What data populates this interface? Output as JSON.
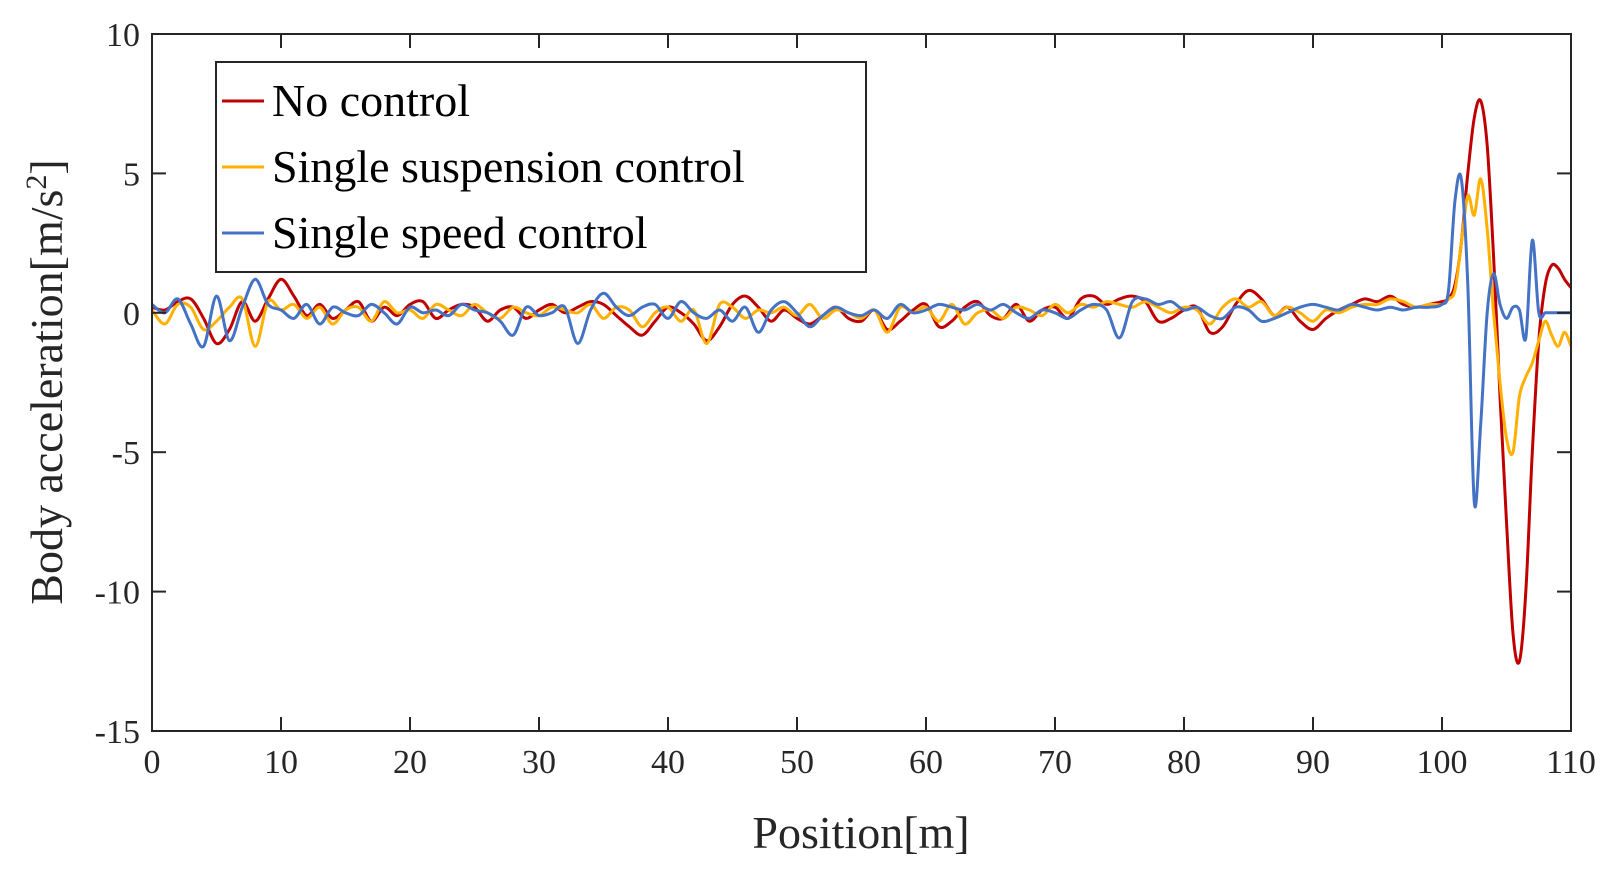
{
  "chart_data": {
    "type": "line",
    "title": "",
    "xlabel": "Position[m]",
    "ylabel": "Body acceleration[m/s",
    "ylabel_sup": "2",
    "ylabel_end": "]",
    "xlim": [
      0,
      110
    ],
    "ylim": [
      -15,
      10
    ],
    "xticks": [
      0,
      10,
      20,
      30,
      40,
      50,
      60,
      70,
      80,
      90,
      100,
      110
    ],
    "yticks": [
      -15,
      -10,
      -5,
      0,
      5,
      10
    ],
    "grid": false,
    "legend_position": "top-left",
    "series": [
      {
        "name": "No control",
        "color": "#c00000",
        "x": [
          0,
          1,
          2,
          3,
          4,
          5,
          6,
          7,
          8,
          9,
          10,
          11,
          12,
          13,
          14,
          15,
          16,
          17,
          18,
          19,
          20,
          21,
          22,
          23,
          24,
          25,
          26,
          27,
          28,
          29,
          30,
          31,
          32,
          33,
          34,
          35,
          36,
          37,
          38,
          39,
          40,
          41,
          42,
          43,
          44,
          45,
          46,
          47,
          48,
          49,
          50,
          51,
          52,
          53,
          54,
          55,
          56,
          57,
          58,
          59,
          60,
          61,
          62,
          63,
          64,
          65,
          66,
          67,
          68,
          69,
          70,
          71,
          72,
          73,
          74,
          75,
          76,
          77,
          78,
          79,
          80,
          81,
          82,
          83,
          84,
          85,
          86,
          87,
          88,
          89,
          90,
          91,
          92,
          93,
          94,
          95,
          96,
          97,
          98,
          99,
          100,
          100.5,
          101,
          101.5,
          102,
          102.5,
          103,
          103.5,
          104,
          104.5,
          105,
          105.5,
          106,
          106.5,
          107,
          107.5,
          108,
          108.5,
          109,
          109.5,
          110
        ],
        "values": [
          0.2,
          0.1,
          0.4,
          0.5,
          -0.2,
          -1.1,
          -0.6,
          0.4,
          -0.3,
          0.5,
          1.2,
          0.6,
          -0.1,
          0.3,
          -0.2,
          0.1,
          0.4,
          -0.3,
          0.2,
          -0.1,
          0.3,
          0.4,
          -0.2,
          0.1,
          0.3,
          0.2,
          -0.3,
          0.1,
          0.2,
          -0.2,
          0.1,
          0.3,
          0.0,
          0.2,
          0.4,
          0.3,
          -0.1,
          -0.5,
          -0.8,
          -0.3,
          0.2,
          0.0,
          -0.4,
          -1.0,
          -0.5,
          0.3,
          0.6,
          0.2,
          -0.3,
          0.1,
          -0.2,
          -0.4,
          -0.1,
          0.2,
          -0.2,
          -0.3,
          0.1,
          -0.6,
          -0.3,
          0.1,
          0.3,
          -0.5,
          -0.3,
          0.2,
          0.4,
          -0.1,
          -0.2,
          0.3,
          -0.3,
          0.1,
          0.2,
          -0.2,
          0.5,
          0.6,
          0.3,
          0.5,
          0.6,
          0.4,
          -0.3,
          -0.2,
          0.1,
          0.2,
          -0.7,
          -0.5,
          0.3,
          0.8,
          0.5,
          -0.1,
          0.2,
          -0.3,
          -0.6,
          -0.2,
          0.1,
          0.3,
          0.5,
          0.4,
          0.6,
          0.3,
          0.2,
          0.3,
          0.4,
          0.5,
          1.0,
          2.5,
          5.0,
          7.0,
          7.6,
          6.0,
          2.0,
          -3.0,
          -7.5,
          -11.5,
          -12.5,
          -10.0,
          -5.0,
          -1.0,
          1.0,
          1.7,
          1.6,
          1.2,
          0.9
        ]
      },
      {
        "name": "Single suspension control",
        "color": "#ffb000",
        "x": [
          0,
          1,
          2,
          3,
          4,
          5,
          6,
          7,
          8,
          9,
          10,
          11,
          12,
          13,
          14,
          15,
          16,
          17,
          18,
          19,
          20,
          21,
          22,
          23,
          24,
          25,
          26,
          27,
          28,
          29,
          30,
          31,
          32,
          33,
          34,
          35,
          36,
          37,
          38,
          39,
          40,
          41,
          42,
          43,
          44,
          45,
          46,
          47,
          48,
          49,
          50,
          51,
          52,
          53,
          54,
          55,
          56,
          57,
          58,
          59,
          60,
          61,
          62,
          63,
          64,
          65,
          66,
          67,
          68,
          69,
          70,
          71,
          72,
          73,
          74,
          75,
          76,
          77,
          78,
          79,
          80,
          81,
          82,
          83,
          84,
          85,
          86,
          87,
          88,
          89,
          90,
          91,
          92,
          93,
          94,
          95,
          96,
          97,
          98,
          99,
          100,
          100.5,
          101,
          101.5,
          102,
          102.5,
          103,
          103.5,
          104,
          104.5,
          105,
          105.5,
          106,
          106.5,
          107,
          107.5,
          108,
          108.5,
          109,
          109.5,
          110
        ],
        "values": [
          0.1,
          -0.4,
          0.3,
          0.2,
          -0.6,
          -0.3,
          0.2,
          0.5,
          -1.2,
          0.4,
          0.1,
          0.3,
          -0.2,
          0.2,
          -0.4,
          0.1,
          0.2,
          -0.3,
          0.4,
          0.0,
          0.1,
          -0.2,
          0.3,
          0.1,
          -0.1,
          0.3,
          0.0,
          -0.2,
          0.2,
          0.0,
          -0.1,
          0.2,
          0.1,
          0.0,
          0.3,
          -0.2,
          0.2,
          0.1,
          -0.5,
          0.0,
          0.2,
          -0.3,
          0.1,
          -1.1,
          0.3,
          0.2,
          -0.2,
          0.1,
          0.0,
          0.2,
          -0.1,
          0.3,
          -0.2,
          0.1,
          0.0,
          -0.2,
          0.1,
          -0.7,
          0.2,
          0.0,
          0.2,
          -0.3,
          0.3,
          -0.4,
          0.0,
          0.1,
          -0.2,
          0.2,
          0.1,
          -0.1,
          0.3,
          0.0,
          0.3,
          0.2,
          0.4,
          0.3,
          0.2,
          0.4,
          0.2,
          0.0,
          0.2,
          0.1,
          -0.4,
          0.2,
          0.5,
          0.2,
          0.4,
          -0.1,
          0.2,
          0.0,
          -0.3,
          0.1,
          0.0,
          0.2,
          0.3,
          0.3,
          0.5,
          0.4,
          0.2,
          0.3,
          0.3,
          0.5,
          0.8,
          2.5,
          4.2,
          3.5,
          4.8,
          3.0,
          0.0,
          -2.5,
          -4.5,
          -5.0,
          -3.0,
          -2.3,
          -1.8,
          -1.0,
          -0.3,
          -0.8,
          -1.2,
          -0.7,
          -1.2
        ]
      },
      {
        "name": "Single speed control",
        "color": "#4472c4",
        "x": [
          0,
          1,
          2,
          3,
          4,
          5,
          6,
          7,
          8,
          9,
          10,
          11,
          12,
          13,
          14,
          15,
          16,
          17,
          18,
          19,
          20,
          21,
          22,
          23,
          24,
          25,
          26,
          27,
          28,
          29,
          30,
          31,
          32,
          33,
          34,
          35,
          36,
          37,
          38,
          39,
          40,
          41,
          42,
          43,
          44,
          45,
          46,
          47,
          48,
          49,
          50,
          51,
          52,
          53,
          54,
          55,
          56,
          57,
          58,
          59,
          60,
          61,
          62,
          63,
          64,
          65,
          66,
          67,
          68,
          69,
          70,
          71,
          72,
          73,
          74,
          75,
          76,
          77,
          78,
          79,
          80,
          81,
          82,
          83,
          84,
          85,
          86,
          87,
          88,
          89,
          90,
          91,
          92,
          93,
          94,
          95,
          96,
          97,
          98,
          99,
          100,
          100.5,
          101,
          101.5,
          102,
          102.5,
          103,
          103.5,
          104,
          104.5,
          105,
          105.5,
          106,
          106.5,
          107,
          107.5,
          108,
          108.5,
          109,
          109.5,
          110
        ],
        "values": [
          0.3,
          0.0,
          0.5,
          -0.4,
          -1.2,
          0.6,
          -1.0,
          0.2,
          1.2,
          0.3,
          0.1,
          -0.2,
          0.3,
          -0.4,
          0.2,
          0.0,
          -0.1,
          0.3,
          0.0,
          -0.4,
          0.2,
          0.0,
          0.1,
          -0.1,
          0.3,
          0.1,
          0.0,
          -0.3,
          -0.8,
          0.2,
          -0.1,
          0.0,
          0.2,
          -1.1,
          0.1,
          0.7,
          0.2,
          -0.1,
          0.2,
          0.3,
          -0.2,
          0.4,
          0.0,
          -0.2,
          0.1,
          -0.3,
          0.2,
          -0.7,
          0.1,
          0.4,
          0.0,
          -0.5,
          -0.1,
          0.2,
          0.0,
          -0.1,
          0.1,
          -0.2,
          0.3,
          0.0,
          0.1,
          0.3,
          0.2,
          0.1,
          0.3,
          0.1,
          0.3,
          0.0,
          -0.2,
          0.1,
          0.0,
          -0.2,
          0.1,
          0.3,
          0.1,
          -0.9,
          0.4,
          0.5,
          0.3,
          0.4,
          0.1,
          0.2,
          -0.1,
          -0.2,
          0.2,
          0.1,
          -0.3,
          -0.2,
          0.0,
          0.2,
          0.3,
          0.2,
          0.1,
          0.3,
          0.2,
          0.1,
          0.2,
          0.1,
          0.2,
          0.2,
          0.3,
          0.8,
          4.0,
          4.8,
          1.0,
          -6.8,
          -4.0,
          0.0,
          1.4,
          0.3,
          -0.2,
          0.2,
          0.1,
          -0.9,
          2.6,
          0.0,
          0.0,
          0.0,
          0.0,
          0.0,
          0.0
        ]
      }
    ]
  }
}
